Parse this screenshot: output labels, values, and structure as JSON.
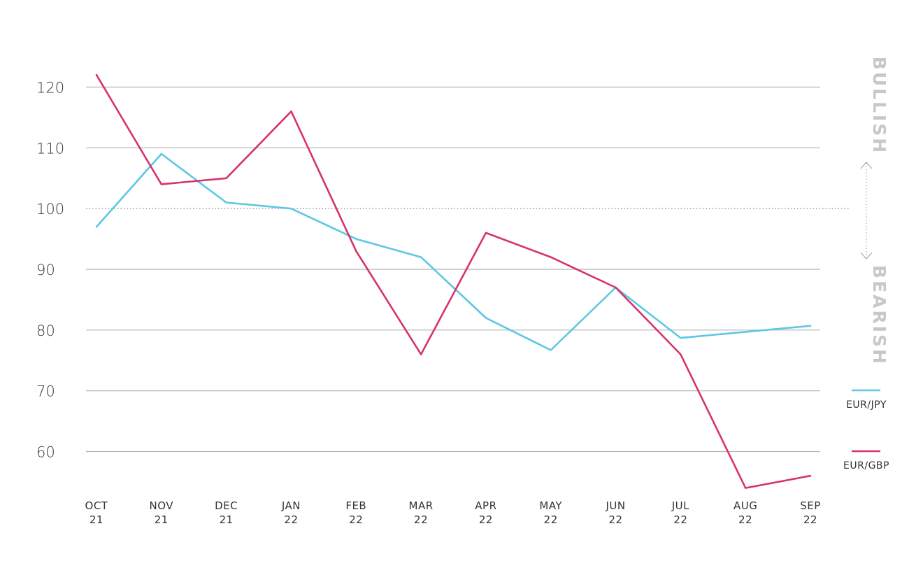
{
  "chart_data": {
    "type": "line",
    "categories": [
      [
        "OCT",
        "21"
      ],
      [
        "NOV",
        "21"
      ],
      [
        "DEC",
        "21"
      ],
      [
        "JAN",
        "22"
      ],
      [
        "FEB",
        "22"
      ],
      [
        "MAR",
        "22"
      ],
      [
        "APR",
        "22"
      ],
      [
        "MAY",
        "22"
      ],
      [
        "JUN",
        "22"
      ],
      [
        "JUL",
        "22"
      ],
      [
        "AUG",
        "22"
      ],
      [
        "SEP",
        "22"
      ]
    ],
    "series": [
      {
        "name": "EUR/JPY",
        "color": "#5bc8e4",
        "values": [
          97,
          109,
          101,
          100,
          95,
          92,
          82,
          76.7,
          87,
          78.7,
          79.7,
          80.7
        ]
      },
      {
        "name": "EUR/GBP",
        "color": "#d6336c",
        "values": [
          122,
          104,
          105,
          116,
          93,
          76,
          96,
          92,
          87,
          76,
          54,
          56
        ]
      }
    ],
    "yticks": [
      60,
      70,
      80,
      90,
      100,
      110,
      120
    ],
    "ylim": [
      53,
      124
    ],
    "reference_line": 100,
    "title": "",
    "xlabel": "",
    "ylabel": "",
    "grid": true,
    "legend_position": "right",
    "side_labels": {
      "top": "BULLISH",
      "bottom": "BEARISH"
    }
  }
}
